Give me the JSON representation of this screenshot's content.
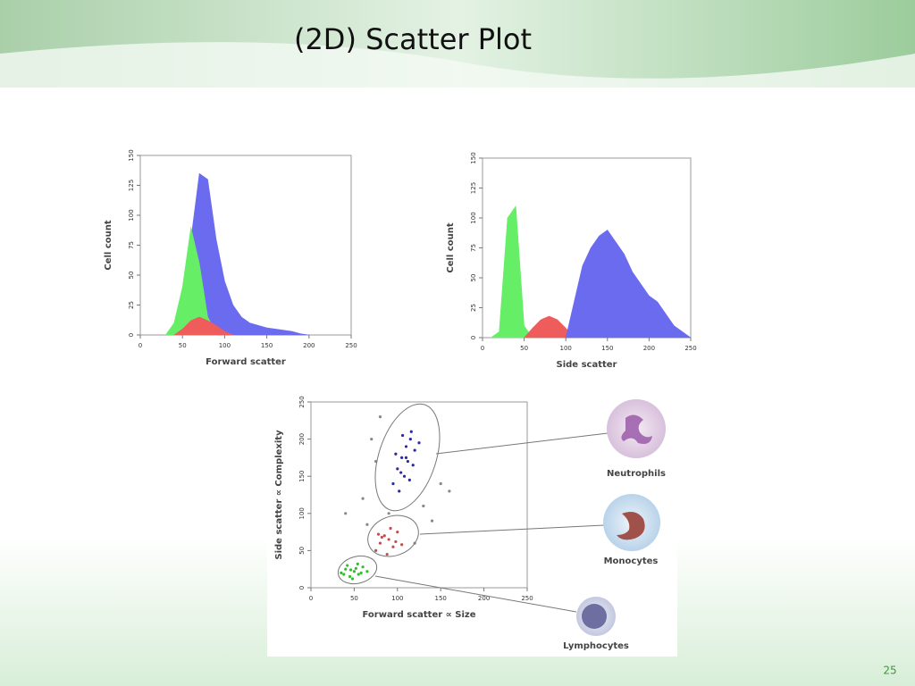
{
  "slide": {
    "title": "(2D) Scatter Plot",
    "page": "25"
  },
  "chart_data": [
    {
      "type": "area",
      "x_label": "Forward scatter",
      "y_label": "Cell count",
      "xlim": [
        0,
        250
      ],
      "xticks": [
        0,
        50,
        100,
        150,
        200,
        250
      ],
      "ylim": [
        0,
        150
      ],
      "yticks": [
        0,
        25,
        50,
        75,
        100,
        125,
        150
      ],
      "x": [
        30,
        40,
        50,
        60,
        70,
        80,
        90,
        100,
        110,
        120,
        130,
        140,
        150,
        160,
        170,
        180,
        190,
        200
      ],
      "series": [
        {
          "color": "#6b6bf0",
          "values": [
            0,
            5,
            25,
            80,
            135,
            130,
            80,
            45,
            25,
            15,
            10,
            8,
            6,
            5,
            4,
            3,
            1,
            0
          ]
        },
        {
          "color": "#66ee66",
          "values": [
            0,
            10,
            40,
            90,
            60,
            15,
            2,
            0,
            null,
            null,
            null,
            null,
            null,
            null,
            null,
            null,
            null,
            null
          ]
        },
        {
          "color": "#ee5c5c",
          "values": [
            null,
            0,
            5,
            12,
            15,
            12,
            8,
            3,
            0,
            null,
            null,
            null,
            null,
            null,
            null,
            null,
            null,
            null
          ]
        }
      ]
    },
    {
      "type": "area",
      "x_label": "Side scatter",
      "y_label": "Cell count",
      "xlim": [
        0,
        250
      ],
      "xticks": [
        0,
        50,
        100,
        150,
        200,
        250
      ],
      "ylim": [
        0,
        150
      ],
      "yticks": [
        0,
        25,
        50,
        75,
        100,
        125,
        150
      ],
      "x": [
        10,
        20,
        30,
        40,
        50,
        60,
        70,
        80,
        90,
        100,
        110,
        120,
        130,
        140,
        150,
        160,
        170,
        180,
        190,
        200,
        210,
        220,
        230,
        240,
        250
      ],
      "series": [
        {
          "color": "#66ee66",
          "values": [
            0,
            5,
            100,
            110,
            10,
            0,
            null,
            null,
            null,
            null,
            null,
            null,
            null,
            null,
            null,
            null,
            null,
            null,
            null,
            null,
            null,
            null,
            null,
            null,
            null
          ]
        },
        {
          "color": "#ee5c5c",
          "values": [
            null,
            null,
            null,
            null,
            0,
            8,
            15,
            18,
            15,
            8,
            0,
            null,
            null,
            null,
            null,
            null,
            null,
            null,
            null,
            null,
            null,
            null,
            null,
            null,
            null
          ]
        },
        {
          "color": "#6b6bf0",
          "values": [
            null,
            null,
            null,
            null,
            null,
            null,
            null,
            null,
            null,
            0,
            30,
            60,
            75,
            85,
            90,
            80,
            70,
            55,
            45,
            35,
            30,
            20,
            10,
            5,
            0
          ]
        }
      ]
    },
    {
      "type": "scatter",
      "x_label": "Forward scatter ∝ Size",
      "y_label": "Side scatter ∝ Complexity",
      "xlim": [
        0,
        250
      ],
      "xticks": [
        0,
        50,
        100,
        150,
        200,
        250
      ],
      "ylim": [
        0,
        250
      ],
      "yticks": [
        0,
        50,
        100,
        150,
        200,
        250
      ],
      "series": [
        {
          "color": "#888888",
          "x": [
            40,
            60,
            70,
            80,
            130,
            150,
            160,
            140,
            90,
            120,
            75,
            65
          ],
          "values": [
            100,
            120,
            200,
            230,
            110,
            140,
            130,
            90,
            100,
            60,
            170,
            85
          ]
        },
        {
          "color": "#2a2aa8",
          "x": [
            95,
            100,
            105,
            110,
            115,
            120,
            108,
            112,
            102,
            118,
            98,
            125,
            106,
            114,
            110,
            104,
            116
          ],
          "values": [
            140,
            160,
            175,
            190,
            200,
            185,
            150,
            170,
            130,
            165,
            180,
            195,
            205,
            145,
            175,
            155,
            210
          ]
        },
        {
          "color": "#c0504d",
          "x": [
            75,
            80,
            85,
            90,
            95,
            100,
            88,
            92,
            82,
            98,
            105,
            78
          ],
          "values": [
            50,
            60,
            70,
            65,
            55,
            75,
            45,
            80,
            68,
            62,
            58,
            72
          ]
        },
        {
          "color": "#2fbf2f",
          "x": [
            35,
            40,
            45,
            50,
            55,
            60,
            42,
            48,
            52,
            58,
            38,
            46,
            54,
            65
          ],
          "values": [
            20,
            25,
            15,
            22,
            18,
            28,
            30,
            12,
            26,
            20,
            18,
            24,
            32,
            22
          ]
        }
      ]
    }
  ],
  "cells": [
    {
      "label": "Neutrophils"
    },
    {
      "label": "Monocytes"
    },
    {
      "label": "Lymphocytes"
    }
  ]
}
